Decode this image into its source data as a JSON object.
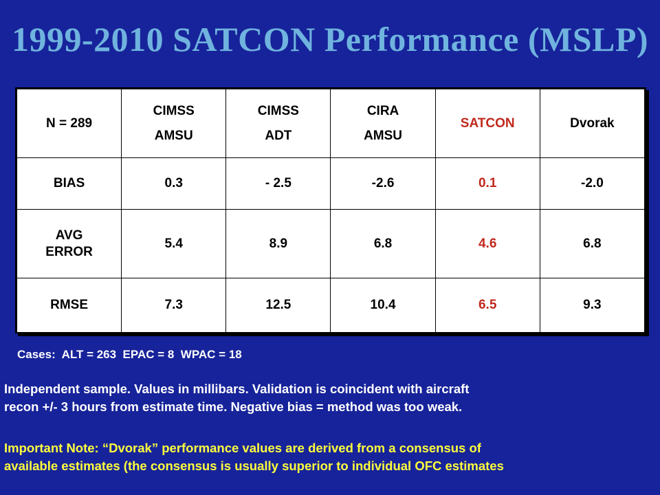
{
  "title": "1999-2010 SATCON Performance (MSLP)",
  "table": {
    "corner": "N = 289",
    "columns": [
      {
        "line1": "CIMSS",
        "line2": "AMSU"
      },
      {
        "line1": "CIMSS",
        "line2": "ADT"
      },
      {
        "line1": "CIRA",
        "line2": "AMSU"
      },
      {
        "line1": "SATCON",
        "line2": ""
      },
      {
        "line1": "Dvorak",
        "line2": ""
      }
    ],
    "rows": [
      {
        "label_line1": "BIAS",
        "label_line2": "",
        "values": [
          "0.3",
          "- 2.5",
          "-2.6",
          "0.1",
          "-2.0"
        ]
      },
      {
        "label_line1": "AVG",
        "label_line2": "ERROR",
        "values": [
          "5.4",
          "8.9",
          "6.8",
          "4.6",
          "6.8"
        ]
      },
      {
        "label_line1": "RMSE",
        "label_line2": "",
        "values": [
          "7.3",
          "12.5",
          "10.4",
          "6.5",
          "9.3"
        ]
      }
    ]
  },
  "cases": "Cases:  ALT = 263  EPAC = 8  WPAC = 18",
  "note1": {
    "line1": "Independent sample.  Values in millibars.  Validation is coincident with aircraft",
    "line2": "recon +/- 3 hours from estimate time. Negative bias = method was too weak."
  },
  "note2": {
    "line1": "Important Note: “Dvorak” performance values are derived from a consensus of",
    "line2": "available estimates (the consensus is usually superior to individual OFC estimates"
  },
  "colors": {
    "background": "#17239a",
    "title": "#6fb3de",
    "satcon_highlight": "#c0281c",
    "note_important": "#ffff3c"
  }
}
